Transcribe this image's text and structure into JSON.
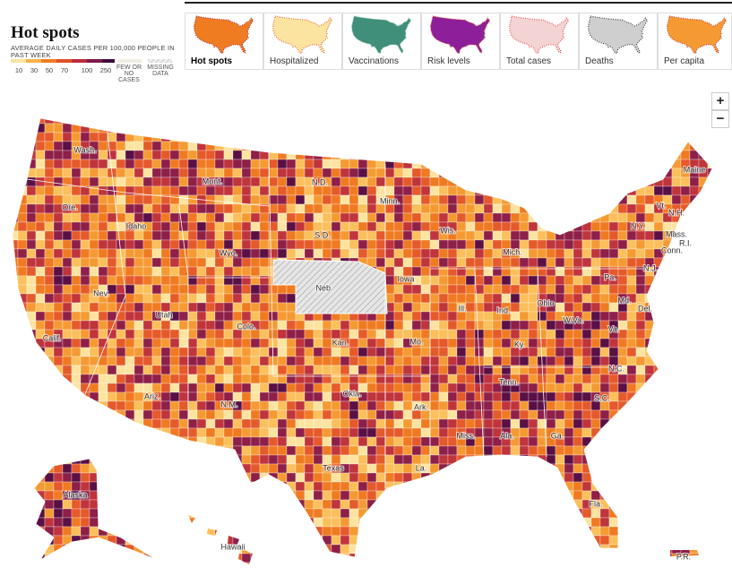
{
  "header": {
    "title": "Hot spots",
    "legend": {
      "caption": "AVERAGE DAILY CASES PER 100,000 PEOPLE IN PAST WEEK",
      "ticks": [
        10,
        30,
        50,
        70,
        100,
        250
      ],
      "few": "FEW OR NO CASES",
      "missing": "MISSING DATA"
    }
  },
  "tabs": [
    "Hot spots",
    "Hospitalized",
    "Vaccinations",
    "Risk levels",
    "Total cases",
    "Deaths",
    "Per capita"
  ],
  "zoom": {
    "in": "+",
    "out": "−"
  },
  "map": {
    "labels": [
      "Wash.",
      "Ore.",
      "Calif.",
      "Nev.",
      "Idaho",
      "Mont.",
      "Wyo.",
      "Utah",
      "Ariz.",
      "N.M.",
      "Colo.",
      "N.D.",
      "S.D.",
      "Neb.",
      "Kan.",
      "Okla.",
      "Texas",
      "Minn.",
      "Iowa",
      "Mo.",
      "Ark.",
      "La.",
      "Wis.",
      "Ill.",
      "Ind.",
      "Mich.",
      "Ohio",
      "Ky.",
      "Tenn.",
      "Miss.",
      "Ala.",
      "Ga.",
      "Fla.",
      "S.C.",
      "N.C.",
      "Va.",
      "W.Va.",
      "Pa.",
      "N.Y.",
      "Vt.",
      "N.H.",
      "Maine",
      "Mass.",
      "R.I.",
      "Conn.",
      "N.J.",
      "Md.",
      "Del.",
      "Alaska",
      "Hawaii",
      "P.R."
    ]
  }
}
